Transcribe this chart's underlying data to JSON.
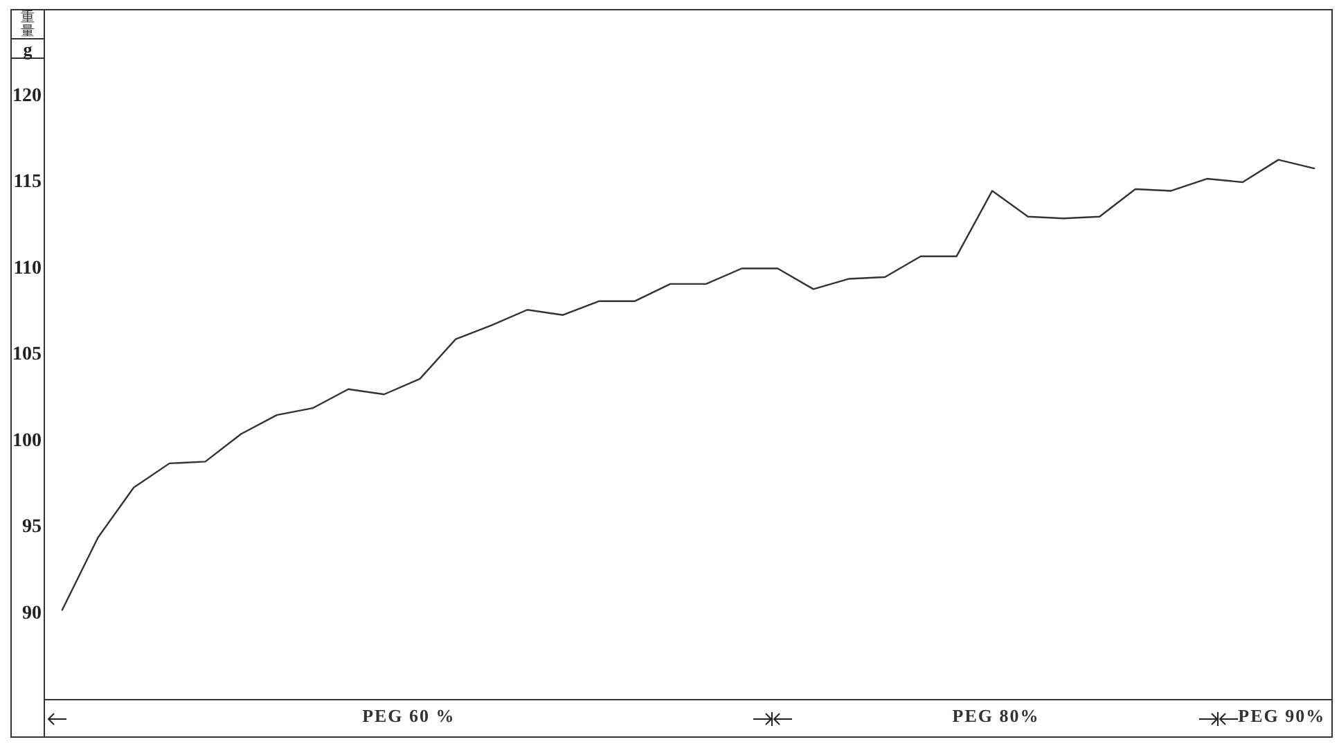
{
  "chart_data": {
    "type": "line",
    "ylabel": "重量",
    "y2label": "g",
    "categories": [
      null,
      null,
      null,
      null,
      null,
      null,
      null,
      null,
      null,
      null,
      null,
      null,
      null,
      null,
      null,
      null,
      null,
      null,
      null,
      null,
      null,
      null,
      null,
      null,
      null,
      null,
      null,
      null,
      null,
      null,
      null,
      null,
      null,
      null,
      null,
      null
    ],
    "series": [
      {
        "color": "#333333",
        "values": [
          90.2,
          94.4,
          97.3,
          98.7,
          98.8,
          100.4,
          101.5,
          101.9,
          103.0,
          102.7,
          103.6,
          105.9,
          106.7,
          107.6,
          107.3,
          108.1,
          108.1,
          109.1,
          109.1,
          110.0,
          110.0,
          108.8,
          109.4,
          109.5,
          110.7,
          110.7,
          114.5,
          113.0,
          112.9,
          113.0,
          114.6,
          114.5,
          115.2,
          115.0,
          116.3,
          115.8
        ]
      }
    ],
    "ylim": [
      85,
      125
    ],
    "yticks": [
      90,
      95,
      100,
      105,
      110,
      115,
      120
    ],
    "grid": false,
    "line_style": "solid",
    "tick_labels": "y",
    "annotations": [
      "PEG 60 %",
      "PEG 80%",
      "PEG 90%"
    ]
  }
}
